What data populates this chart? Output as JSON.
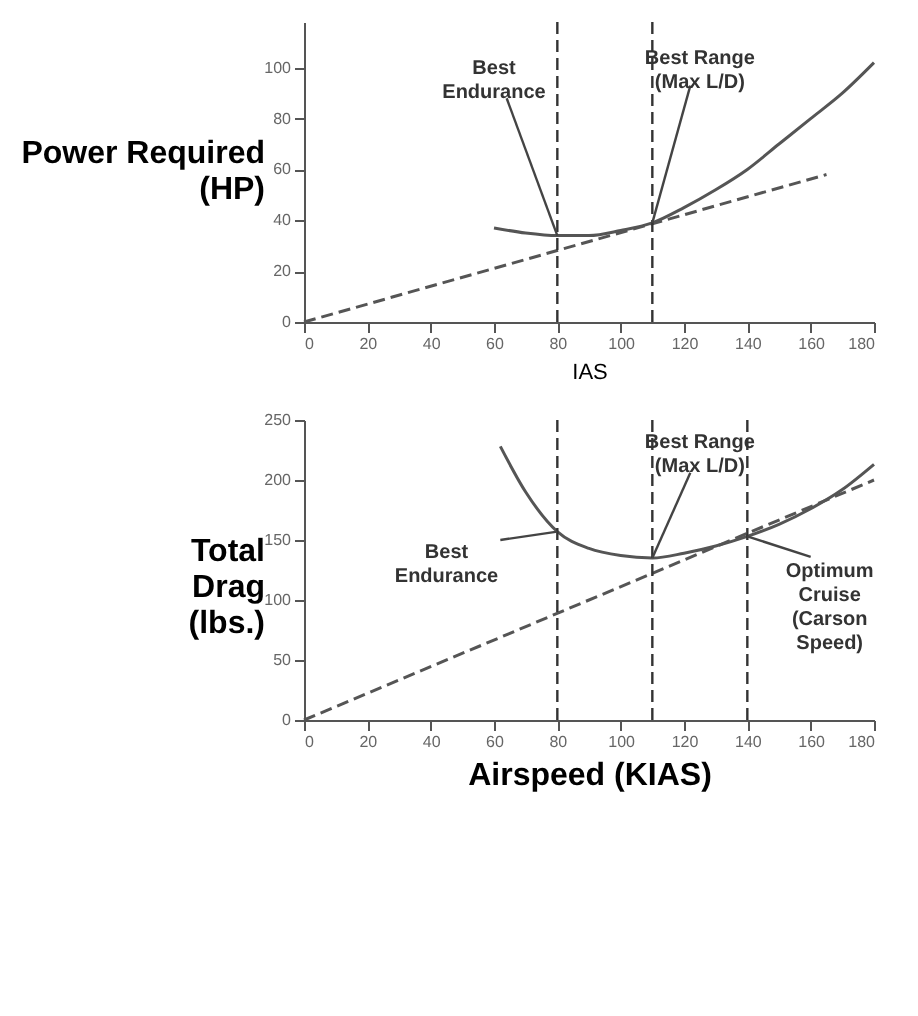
{
  "chart_data": [
    {
      "type": "line",
      "xlabel": "IAS",
      "ylabel": "Power Required\n(HP)",
      "xlim": [
        0,
        180
      ],
      "xticks": [
        0,
        20,
        40,
        60,
        80,
        100,
        120,
        140,
        160,
        180
      ],
      "ylim": [
        0,
        118
      ],
      "yticks": [
        0,
        20,
        40,
        60,
        80,
        100
      ],
      "grid": false,
      "series": [
        {
          "color": "#555555",
          "line_style": "solid",
          "x": [
            60,
            70,
            80,
            90,
            100,
            110,
            120,
            130,
            140,
            150,
            160,
            170,
            180
          ],
          "values": [
            37,
            35,
            34,
            34,
            36,
            39,
            45,
            52,
            60,
            70,
            80,
            90,
            102
          ]
        },
        {
          "color": "#555555",
          "line_style": "dashed",
          "x": [
            0,
            165
          ],
          "values": [
            0,
            58
          ]
        }
      ],
      "ref_lines": [
        {
          "axis": "x",
          "value": 80,
          "line_style": "dashed"
        },
        {
          "axis": "x",
          "value": 110,
          "line_style": "dashed"
        }
      ],
      "annotations": [
        {
          "text": "Best\nEndurance",
          "x": 80,
          "y": 34
        },
        {
          "text": "Best Range\n(Max L/D)",
          "x": 110,
          "y": 39
        }
      ]
    },
    {
      "type": "line",
      "xlabel": "Airspeed (KIAS)",
      "ylabel": "Total\nDrag\n(lbs.)",
      "xlim": [
        0,
        180
      ],
      "xticks": [
        0,
        20,
        40,
        60,
        80,
        100,
        120,
        140,
        160,
        180
      ],
      "ylim": [
        0,
        250
      ],
      "yticks": [
        0,
        50,
        100,
        150,
        200,
        250
      ],
      "grid": false,
      "series": [
        {
          "color": "#555555",
          "line_style": "solid",
          "x": [
            62,
            70,
            80,
            90,
            100,
            110,
            120,
            130,
            140,
            150,
            160,
            170,
            180
          ],
          "values": [
            228,
            190,
            157,
            143,
            137,
            135,
            139,
            145,
            153,
            163,
            176,
            192,
            213
          ]
        },
        {
          "color": "#555555",
          "line_style": "dashed",
          "x": [
            0,
            180
          ],
          "values": [
            0,
            200
          ]
        }
      ],
      "ref_lines": [
        {
          "axis": "x",
          "value": 80,
          "line_style": "dashed"
        },
        {
          "axis": "x",
          "value": 110,
          "line_style": "dashed"
        },
        {
          "axis": "x",
          "value": 140,
          "line_style": "dashed"
        }
      ],
      "annotations": [
        {
          "text": "Best\nEndurance",
          "x": 80,
          "y": 157
        },
        {
          "text": "Best Range\n(Max L/D)",
          "x": 110,
          "y": 135
        },
        {
          "text": "Optimum\nCruise\n(Carson\nSpeed)",
          "x": 140,
          "y": 153
        }
      ]
    }
  ]
}
